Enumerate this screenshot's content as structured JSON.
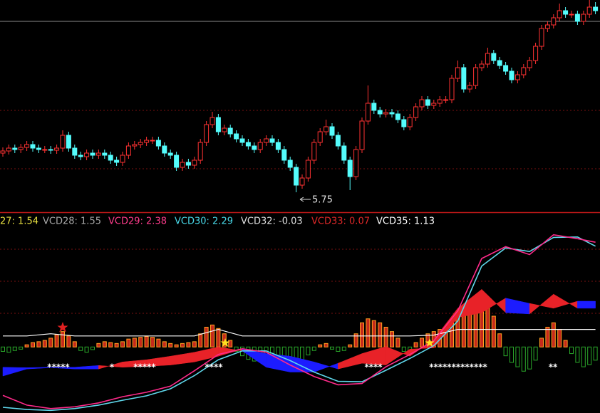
{
  "chart_data": {
    "type": "candlestick",
    "ylim": [
      5.47,
      8.45
    ],
    "up_color": "#ff3232",
    "down_color": "#54fcfc",
    "candles": {
      "open": [
        6.3,
        6.33,
        6.37,
        6.35,
        6.38,
        6.42,
        6.37,
        6.35,
        6.35,
        6.34,
        6.37,
        6.55,
        6.37,
        6.27,
        6.25,
        6.3,
        6.27,
        6.3,
        6.27,
        6.2,
        6.17,
        6.27,
        6.4,
        6.42,
        6.45,
        6.48,
        6.48,
        6.4,
        6.3,
        6.27,
        6.1,
        6.17,
        6.13,
        6.2,
        6.45,
        6.7,
        6.8,
        6.6,
        6.65,
        6.57,
        6.5,
        6.45,
        6.4,
        6.35,
        6.45,
        6.5,
        6.45,
        6.35,
        6.2,
        6.1,
        5.85,
        5.95,
        6.2,
        6.45,
        6.6,
        6.67,
        6.55,
        6.4,
        6.2,
        5.97,
        6.35,
        6.75,
        7.0,
        6.9,
        6.85,
        6.87,
        6.85,
        6.77,
        6.67,
        6.8,
        6.95,
        7.05,
        6.97,
        7.0,
        7.05,
        7.05,
        7.35,
        7.5,
        7.2,
        7.25,
        7.5,
        7.55,
        7.7,
        7.6,
        7.53,
        7.45,
        7.33,
        7.4,
        7.5,
        7.6,
        7.8,
        8.05,
        8.1,
        8.2,
        8.3,
        8.25,
        8.25,
        8.15,
        8.25,
        8.35
      ],
      "high": [
        6.38,
        6.42,
        6.42,
        6.43,
        6.47,
        6.47,
        6.42,
        6.4,
        6.4,
        6.42,
        6.62,
        6.6,
        6.42,
        6.32,
        6.35,
        6.35,
        6.35,
        6.35,
        6.32,
        6.25,
        6.32,
        6.45,
        6.47,
        6.5,
        6.53,
        6.53,
        6.53,
        6.45,
        6.35,
        6.32,
        6.22,
        6.22,
        6.25,
        6.5,
        6.75,
        6.88,
        6.85,
        6.7,
        6.7,
        6.62,
        6.55,
        6.5,
        6.45,
        6.5,
        6.55,
        6.55,
        6.5,
        6.4,
        6.25,
        6.15,
        6.0,
        6.25,
        6.5,
        6.65,
        6.77,
        6.72,
        6.6,
        6.45,
        6.25,
        6.4,
        6.8,
        7.25,
        7.05,
        6.95,
        6.92,
        6.92,
        6.9,
        6.82,
        6.85,
        7.0,
        7.1,
        7.1,
        7.05,
        7.1,
        7.1,
        7.4,
        7.6,
        7.55,
        7.3,
        7.55,
        7.6,
        7.78,
        7.75,
        7.65,
        7.58,
        7.5,
        7.45,
        7.55,
        7.65,
        7.85,
        8.1,
        8.15,
        8.25,
        8.4,
        8.35,
        8.3,
        8.3,
        8.3,
        8.45,
        8.42
      ],
      "low": [
        6.25,
        6.28,
        6.3,
        6.3,
        6.33,
        6.32,
        6.3,
        6.3,
        6.29,
        6.29,
        6.32,
        6.32,
        6.22,
        6.2,
        6.2,
        6.22,
        6.22,
        6.22,
        6.15,
        6.12,
        6.12,
        6.22,
        6.35,
        6.37,
        6.4,
        6.43,
        6.35,
        6.25,
        6.22,
        6.05,
        6.05,
        6.08,
        6.08,
        6.15,
        6.4,
        6.65,
        6.55,
        6.55,
        6.52,
        6.45,
        6.4,
        6.35,
        6.3,
        6.3,
        6.4,
        6.4,
        6.3,
        6.15,
        6.05,
        5.75,
        5.8,
        5.9,
        6.15,
        6.4,
        6.55,
        6.5,
        6.35,
        6.15,
        5.78,
        5.92,
        6.3,
        6.7,
        6.85,
        6.8,
        6.8,
        6.8,
        6.72,
        6.62,
        6.62,
        6.75,
        6.9,
        6.92,
        6.92,
        6.95,
        7.0,
        7.0,
        7.3,
        7.15,
        7.15,
        7.2,
        7.45,
        7.5,
        7.55,
        7.48,
        7.4,
        7.28,
        7.28,
        7.35,
        7.45,
        7.55,
        7.75,
        8.0,
        8.05,
        8.15,
        8.2,
        8.2,
        8.1,
        8.1,
        8.2,
        8.25
      ],
      "close": [
        6.33,
        6.37,
        6.35,
        6.38,
        6.42,
        6.37,
        6.35,
        6.35,
        6.34,
        6.37,
        6.55,
        6.37,
        6.27,
        6.25,
        6.3,
        6.27,
        6.3,
        6.27,
        6.2,
        6.17,
        6.27,
        6.4,
        6.42,
        6.45,
        6.48,
        6.48,
        6.4,
        6.3,
        6.27,
        6.1,
        6.17,
        6.13,
        6.2,
        6.45,
        6.7,
        6.8,
        6.6,
        6.65,
        6.57,
        6.5,
        6.45,
        6.4,
        6.35,
        6.45,
        6.5,
        6.45,
        6.35,
        6.2,
        6.1,
        5.85,
        5.95,
        6.2,
        6.45,
        6.6,
        6.67,
        6.55,
        6.4,
        6.2,
        5.97,
        6.35,
        6.75,
        7.0,
        6.9,
        6.85,
        6.87,
        6.85,
        6.77,
        6.67,
        6.8,
        6.95,
        7.05,
        6.97,
        7.0,
        7.05,
        7.05,
        7.35,
        7.5,
        7.2,
        7.25,
        7.5,
        7.55,
        7.7,
        7.6,
        7.53,
        7.45,
        7.33,
        7.4,
        7.5,
        7.6,
        7.8,
        8.05,
        8.1,
        8.2,
        8.3,
        8.25,
        8.25,
        8.15,
        8.25,
        8.35,
        8.3
      ]
    },
    "low_annotation": "5.75",
    "indicator_legend": [
      {
        "label": "27: 1.54",
        "color": "#e8e040"
      },
      {
        "label": "VCD28: 1.55",
        "color": "#a8a8a8"
      },
      {
        "label": "VCD29: 2.38",
        "color": "#ff3c8c"
      },
      {
        "label": "VCD30: 2.29",
        "color": "#48d8e8"
      },
      {
        "label": "VCD32: -0.03",
        "color": "#e0e0e0"
      },
      {
        "label": "VCD33: 0.07",
        "color": "#e02828"
      },
      {
        "label": "VCD35: 1.13",
        "color": "#ffffff"
      }
    ],
    "indicator": {
      "ylim": [
        -1.5,
        3.03
      ],
      "x": [
        0,
        4,
        8,
        12,
        16,
        20,
        24,
        28,
        32,
        36,
        40,
        44,
        48,
        52,
        56,
        60,
        64,
        68,
        72,
        76,
        80,
        84,
        88,
        92,
        96,
        99
      ],
      "histogram": {
        "up_color": "#e83020",
        "down_color": "#2aa82a",
        "values": [
          -0.1,
          -0.12,
          -0.08,
          -0.05,
          0.05,
          0.1,
          0.12,
          0.15,
          0.2,
          0.28,
          0.35,
          0.25,
          0.12,
          -0.08,
          -0.12,
          -0.06,
          0.08,
          0.12,
          0.1,
          0.08,
          0.12,
          0.18,
          0.2,
          0.22,
          0.24,
          0.22,
          0.18,
          0.12,
          0.08,
          0.05,
          0.08,
          0.1,
          0.12,
          0.3,
          0.45,
          0.5,
          0.42,
          0.3,
          0.15,
          -0.1,
          -0.2,
          -0.28,
          -0.32,
          -0.25,
          -0.2,
          -0.18,
          -0.22,
          -0.28,
          -0.3,
          -0.35,
          -0.3,
          -0.18,
          -0.08,
          0.05,
          0.08,
          -0.05,
          -0.1,
          -0.08,
          0.05,
          0.3,
          0.55,
          0.64,
          0.6,
          0.55,
          0.45,
          0.35,
          0.2,
          -0.1,
          -0.15,
          0.1,
          0.2,
          0.3,
          0.35,
          0.4,
          0.45,
          0.6,
          0.75,
          0.8,
          0.85,
          0.9,
          0.92,
          0.88,
          0.7,
          0.3,
          -0.2,
          -0.35,
          -0.45,
          -0.55,
          -0.5,
          -0.3,
          0.2,
          0.45,
          0.55,
          0.4,
          0.15,
          -0.15,
          -0.35,
          -0.45,
          -0.4,
          -0.3
        ]
      },
      "ribbon": {
        "up_color": "#e82228",
        "down_color": "#1c1cff",
        "a": [
          -0.66,
          -0.5,
          -0.47,
          -0.5,
          -0.5,
          -0.34,
          -0.29,
          -0.21,
          -0.12,
          0.0,
          -0.09,
          -0.46,
          -0.57,
          -0.57,
          -0.37,
          -0.15,
          0.01,
          -0.21,
          0.17,
          0.88,
          1.31,
          0.78,
          0.75,
          1.2,
          0.88,
          0.88
        ],
        "b": [
          -0.46,
          -0.47,
          -0.46,
          -0.46,
          -0.42,
          -0.46,
          -0.44,
          -0.41,
          -0.34,
          -0.21,
          -0.05,
          -0.15,
          -0.21,
          -0.34,
          -0.5,
          -0.37,
          -0.41,
          -0.05,
          -0.02,
          0.67,
          0.78,
          1.11,
          0.99,
          0.88,
          1.04,
          1.04
        ]
      },
      "series": [
        {
          "color": "#ffffff",
          "values": [
            0.25,
            0.25,
            0.3,
            0.25,
            0.25,
            0.25,
            0.25,
            0.25,
            0.25,
            0.4,
            0.25,
            0.25,
            0.25,
            0.25,
            0.25,
            0.25,
            0.25,
            0.25,
            0.27,
            0.4,
            0.4,
            0.4,
            0.4,
            0.4,
            0.4,
            0.4
          ]
        },
        {
          "color": "#5fd8ec",
          "values": [
            -1.37,
            -1.42,
            -1.44,
            -1.4,
            -1.32,
            -1.21,
            -1.11,
            -0.95,
            -0.65,
            -0.29,
            -0.09,
            -0.09,
            -0.31,
            -0.57,
            -0.78,
            -0.79,
            -0.53,
            -0.26,
            0.03,
            0.59,
            1.84,
            2.25,
            2.17,
            2.49,
            2.5,
            2.29
          ]
        },
        {
          "color": "#ff2a8a",
          "values": [
            -1.1,
            -1.32,
            -1.4,
            -1.36,
            -1.27,
            -1.13,
            -1.03,
            -0.89,
            -0.54,
            -0.17,
            -0.04,
            -0.12,
            -0.41,
            -0.67,
            -0.86,
            -0.83,
            -0.45,
            -0.17,
            0.14,
            0.82,
            2.01,
            2.28,
            2.1,
            2.55,
            2.46,
            2.38
          ]
        }
      ],
      "stars": [
        "*****",
        "*",
        "*****",
        "****",
        "****",
        "*************",
        "**"
      ]
    }
  }
}
